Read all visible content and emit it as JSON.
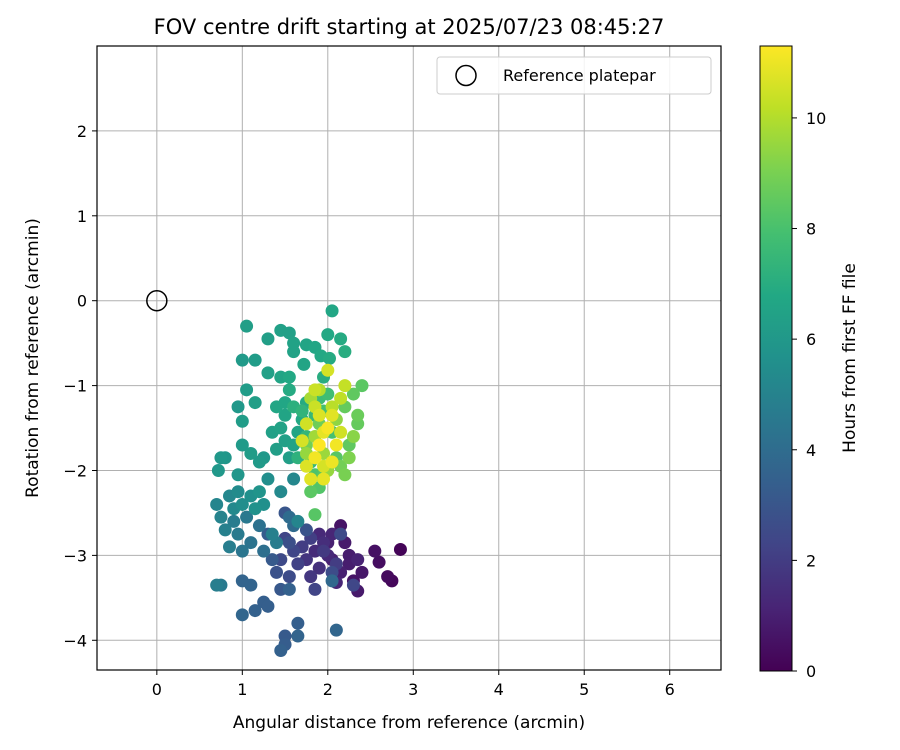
{
  "chart_data": {
    "type": "scatter",
    "title": "FOV centre drift starting at 2025/07/23 08:45:27",
    "xlabel": "Angular distance from reference (arcmin)",
    "ylabel": "Rotation from reference (arcmin)",
    "xlim": [
      -0.7,
      6.6
    ],
    "ylim": [
      -4.35,
      3.0
    ],
    "xticks": [
      0,
      1,
      2,
      3,
      4,
      5,
      6
    ],
    "yticks": [
      -4,
      -3,
      -2,
      -1,
      0,
      1,
      2
    ],
    "grid": true,
    "legend": {
      "position": "top-right",
      "entries": [
        {
          "label": "Reference platepar",
          "marker": "open-circle"
        }
      ]
    },
    "colorbar": {
      "label": "Hours from first FF file",
      "min": 0,
      "max": 11.3,
      "ticks": [
        0,
        2,
        4,
        6,
        8,
        10
      ],
      "colormap": "viridis"
    },
    "reference_point": {
      "x": 0,
      "y": 0
    },
    "points": [
      [
        2.85,
        -2.93,
        0.1
      ],
      [
        2.75,
        -3.3,
        0.2
      ],
      [
        2.7,
        -3.25,
        0.3
      ],
      [
        2.6,
        -3.08,
        0.4
      ],
      [
        2.55,
        -2.95,
        0.5
      ],
      [
        2.4,
        -3.2,
        0.7
      ],
      [
        2.35,
        -3.42,
        0.8
      ],
      [
        2.3,
        -3.3,
        0.6
      ],
      [
        2.25,
        -3.0,
        0.9
      ],
      [
        2.15,
        -3.2,
        1.0
      ],
      [
        2.1,
        -3.32,
        1.2
      ],
      [
        2.05,
        -3.05,
        1.0
      ],
      [
        2.2,
        -2.85,
        0.8
      ],
      [
        2.15,
        -2.65,
        0.6
      ],
      [
        2.0,
        -3.0,
        1.3
      ],
      [
        1.95,
        -2.85,
        1.5
      ],
      [
        1.9,
        -3.15,
        1.6
      ],
      [
        1.85,
        -2.95,
        1.4
      ],
      [
        1.8,
        -3.25,
        1.8
      ],
      [
        1.75,
        -3.05,
        1.7
      ],
      [
        2.05,
        -2.75,
        1.2
      ],
      [
        2.25,
        -3.1,
        0.9
      ],
      [
        2.35,
        -3.05,
        1.1
      ],
      [
        2.0,
        -2.85,
        1.0
      ],
      [
        1.9,
        -2.75,
        1.3
      ],
      [
        1.7,
        -2.9,
        2.0
      ],
      [
        1.65,
        -3.1,
        2.2
      ],
      [
        1.6,
        -2.95,
        2.4
      ],
      [
        1.55,
        -3.25,
        2.6
      ],
      [
        1.5,
        -2.8,
        2.3
      ],
      [
        1.45,
        -3.05,
        2.5
      ],
      [
        1.4,
        -3.2,
        2.8
      ],
      [
        1.55,
        -2.85,
        2.7
      ],
      [
        1.8,
        -2.8,
        2.1
      ],
      [
        1.95,
        -2.95,
        1.9
      ],
      [
        2.1,
        -3.1,
        2.0
      ],
      [
        2.3,
        -3.35,
        2.4
      ],
      [
        2.15,
        -2.75,
        2.5
      ],
      [
        1.85,
        -3.4,
        2.3
      ],
      [
        2.05,
        -3.2,
        2.6
      ],
      [
        1.75,
        -2.7,
        2.9
      ],
      [
        1.5,
        -2.5,
        3.0
      ],
      [
        1.45,
        -3.4,
        3.1
      ],
      [
        1.35,
        -3.05,
        3.2
      ],
      [
        1.3,
        -2.75,
        3.3
      ],
      [
        1.25,
        -3.55,
        3.4
      ],
      [
        1.3,
        -3.6,
        3.4
      ],
      [
        1.15,
        -3.65,
        3.5
      ],
      [
        1.1,
        -3.35,
        3.6
      ],
      [
        1.0,
        -3.3,
        3.6
      ],
      [
        1.0,
        -3.7,
        3.7
      ],
      [
        1.5,
        -3.95,
        3.2
      ],
      [
        1.5,
        -4.05,
        3.3
      ],
      [
        1.45,
        -4.12,
        3.5
      ],
      [
        1.65,
        -3.95,
        3.6
      ],
      [
        1.65,
        -3.8,
        3.4
      ],
      [
        1.55,
        -3.4,
        3.5
      ],
      [
        2.1,
        -3.88,
        3.7
      ],
      [
        2.05,
        -3.3,
        3.8
      ],
      [
        1.6,
        -2.65,
        3.9
      ],
      [
        1.55,
        -2.55,
        4.0
      ],
      [
        1.25,
        -2.95,
        4.1
      ],
      [
        1.2,
        -2.65,
        4.2
      ],
      [
        1.1,
        -2.85,
        4.3
      ],
      [
        1.0,
        -2.95,
        4.4
      ],
      [
        1.05,
        -2.55,
        4.5
      ],
      [
        0.95,
        -2.75,
        4.6
      ],
      [
        0.9,
        -2.6,
        4.7
      ],
      [
        0.85,
        -2.9,
        4.8
      ],
      [
        0.8,
        -2.7,
        4.9
      ],
      [
        0.75,
        -3.35,
        4.6
      ],
      [
        0.7,
        -3.35,
        4.8
      ],
      [
        0.75,
        -2.55,
        5.0
      ],
      [
        0.7,
        -2.4,
        5.1
      ],
      [
        0.85,
        -2.3,
        5.2
      ],
      [
        0.9,
        -2.45,
        5.3
      ],
      [
        0.95,
        -2.25,
        5.4
      ],
      [
        1.0,
        -2.4,
        5.5
      ],
      [
        1.1,
        -2.3,
        5.6
      ],
      [
        1.15,
        -2.45,
        5.7
      ],
      [
        1.2,
        -2.25,
        5.8
      ],
      [
        1.25,
        -2.4,
        5.6
      ],
      [
        1.3,
        -2.1,
        5.5
      ],
      [
        1.45,
        -2.25,
        5.3
      ],
      [
        1.6,
        -2.1,
        5.2
      ],
      [
        1.65,
        -2.6,
        5.1
      ],
      [
        1.35,
        -2.75,
        4.9
      ],
      [
        1.4,
        -2.85,
        4.7
      ],
      [
        0.95,
        -2.05,
        5.9
      ],
      [
        0.8,
        -1.85,
        5.9
      ],
      [
        0.75,
        -1.85,
        6.0
      ],
      [
        0.72,
        -2.0,
        6.0
      ],
      [
        1.0,
        -1.7,
        6.1
      ],
      [
        1.1,
        -1.8,
        6.2
      ],
      [
        1.2,
        -1.9,
        6.1
      ],
      [
        1.25,
        -1.85,
        6.0
      ],
      [
        1.4,
        -1.75,
        6.3
      ],
      [
        1.5,
        -1.65,
        6.4
      ],
      [
        1.45,
        -1.5,
        6.5
      ],
      [
        1.5,
        -1.35,
        6.6
      ],
      [
        1.5,
        -1.2,
        6.7
      ],
      [
        1.4,
        -1.25,
        6.7
      ],
      [
        1.55,
        -1.85,
        6.3
      ],
      [
        1.6,
        -1.7,
        6.5
      ],
      [
        1.65,
        -1.55,
        6.6
      ],
      [
        1.7,
        -1.4,
        6.8
      ],
      [
        1.75,
        -1.2,
        6.9
      ],
      [
        1.55,
        -1.05,
        6.9
      ],
      [
        1.55,
        -0.9,
        6.8
      ],
      [
        1.45,
        -0.9,
        6.6
      ],
      [
        1.3,
        -0.85,
        6.4
      ],
      [
        1.15,
        -0.7,
        6.2
      ],
      [
        1.0,
        -0.7,
        6.1
      ],
      [
        1.05,
        -0.3,
        6.3
      ],
      [
        1.3,
        -0.45,
        6.3
      ],
      [
        1.45,
        -0.35,
        6.4
      ],
      [
        1.55,
        -0.38,
        6.4
      ],
      [
        1.6,
        -0.5,
        6.5
      ],
      [
        1.6,
        -0.6,
        6.5
      ],
      [
        1.75,
        -0.52,
        6.6
      ],
      [
        1.85,
        -0.55,
        6.7
      ],
      [
        1.72,
        -0.75,
        6.6
      ],
      [
        1.92,
        -0.65,
        6.8
      ],
      [
        2.0,
        -0.4,
        6.8
      ],
      [
        2.05,
        -0.12,
        6.7
      ],
      [
        2.15,
        -0.45,
        6.9
      ],
      [
        2.2,
        -0.6,
        7.0
      ],
      [
        2.02,
        -0.68,
        6.9
      ],
      [
        1.95,
        -0.9,
        7.0
      ],
      [
        0.95,
        -1.25,
        6.0
      ],
      [
        1.05,
        -1.05,
        6.2
      ],
      [
        1.15,
        -1.2,
        6.3
      ],
      [
        1.0,
        -1.42,
        6.2
      ],
      [
        1.35,
        -1.55,
        6.4
      ],
      [
        1.6,
        -1.25,
        7.1
      ],
      [
        1.7,
        -1.3,
        7.3
      ],
      [
        1.75,
        -1.6,
        7.4
      ],
      [
        1.85,
        -1.35,
        7.5
      ],
      [
        1.65,
        -1.85,
        7.2
      ],
      [
        1.8,
        -1.9,
        7.6
      ],
      [
        1.9,
        -1.15,
        7.7
      ],
      [
        2.0,
        -1.1,
        7.8
      ],
      [
        1.95,
        -1.3,
        7.9
      ],
      [
        2.05,
        -1.55,
        8.0
      ],
      [
        1.85,
        -2.05,
        8.1
      ],
      [
        1.9,
        -2.2,
        8.2
      ],
      [
        1.95,
        -2.05,
        8.3
      ],
      [
        2.1,
        -1.85,
        8.3
      ],
      [
        2.25,
        -1.7,
        8.5
      ],
      [
        2.35,
        -1.45,
        8.6
      ],
      [
        2.35,
        -1.35,
        8.7
      ],
      [
        2.4,
        -1.0,
        8.4
      ],
      [
        2.3,
        -1.1,
        8.5
      ],
      [
        2.2,
        -1.25,
        8.6
      ],
      [
        1.8,
        -2.25,
        8.4
      ],
      [
        1.85,
        -2.52,
        8.3
      ],
      [
        1.9,
        -1.45,
        8.8
      ],
      [
        1.75,
        -1.7,
        8.9
      ],
      [
        2.15,
        -1.95,
        8.9
      ],
      [
        2.2,
        -2.05,
        9.0
      ],
      [
        2.25,
        -1.85,
        9.1
      ],
      [
        2.3,
        -1.6,
        9.3
      ],
      [
        2.1,
        -1.4,
        9.4
      ],
      [
        2.0,
        -2.0,
        9.5
      ],
      [
        1.95,
        -1.8,
        9.6
      ],
      [
        1.85,
        -1.6,
        9.7
      ],
      [
        1.75,
        -1.8,
        9.5
      ],
      [
        1.8,
        -1.15,
        9.8
      ],
      [
        1.9,
        -1.05,
        10.0
      ],
      [
        2.05,
        -1.25,
        10.1
      ],
      [
        2.15,
        -1.15,
        10.2
      ],
      [
        2.2,
        -1.0,
        10.3
      ],
      [
        2.0,
        -0.82,
        10.6
      ],
      [
        1.85,
        -1.25,
        10.4
      ],
      [
        1.75,
        -1.45,
        10.5
      ],
      [
        1.7,
        -1.65,
        10.6
      ],
      [
        1.75,
        -1.95,
        10.7
      ],
      [
        1.8,
        -2.1,
        10.8
      ],
      [
        1.95,
        -2.1,
        10.9
      ],
      [
        2.05,
        -1.9,
        11.0
      ],
      [
        2.1,
        -1.7,
        11.1
      ],
      [
        2.0,
        -1.5,
        11.2
      ],
      [
        1.9,
        -1.7,
        11.3
      ],
      [
        1.85,
        -1.85,
        11.1
      ],
      [
        1.95,
        -1.55,
        10.9
      ],
      [
        2.05,
        -1.35,
        10.8
      ],
      [
        1.9,
        -1.35,
        10.7
      ],
      [
        2.15,
        -1.55,
        10.5
      ],
      [
        1.85,
        -1.05,
        10.4
      ],
      [
        1.95,
        -1.95,
        10.6
      ]
    ]
  }
}
